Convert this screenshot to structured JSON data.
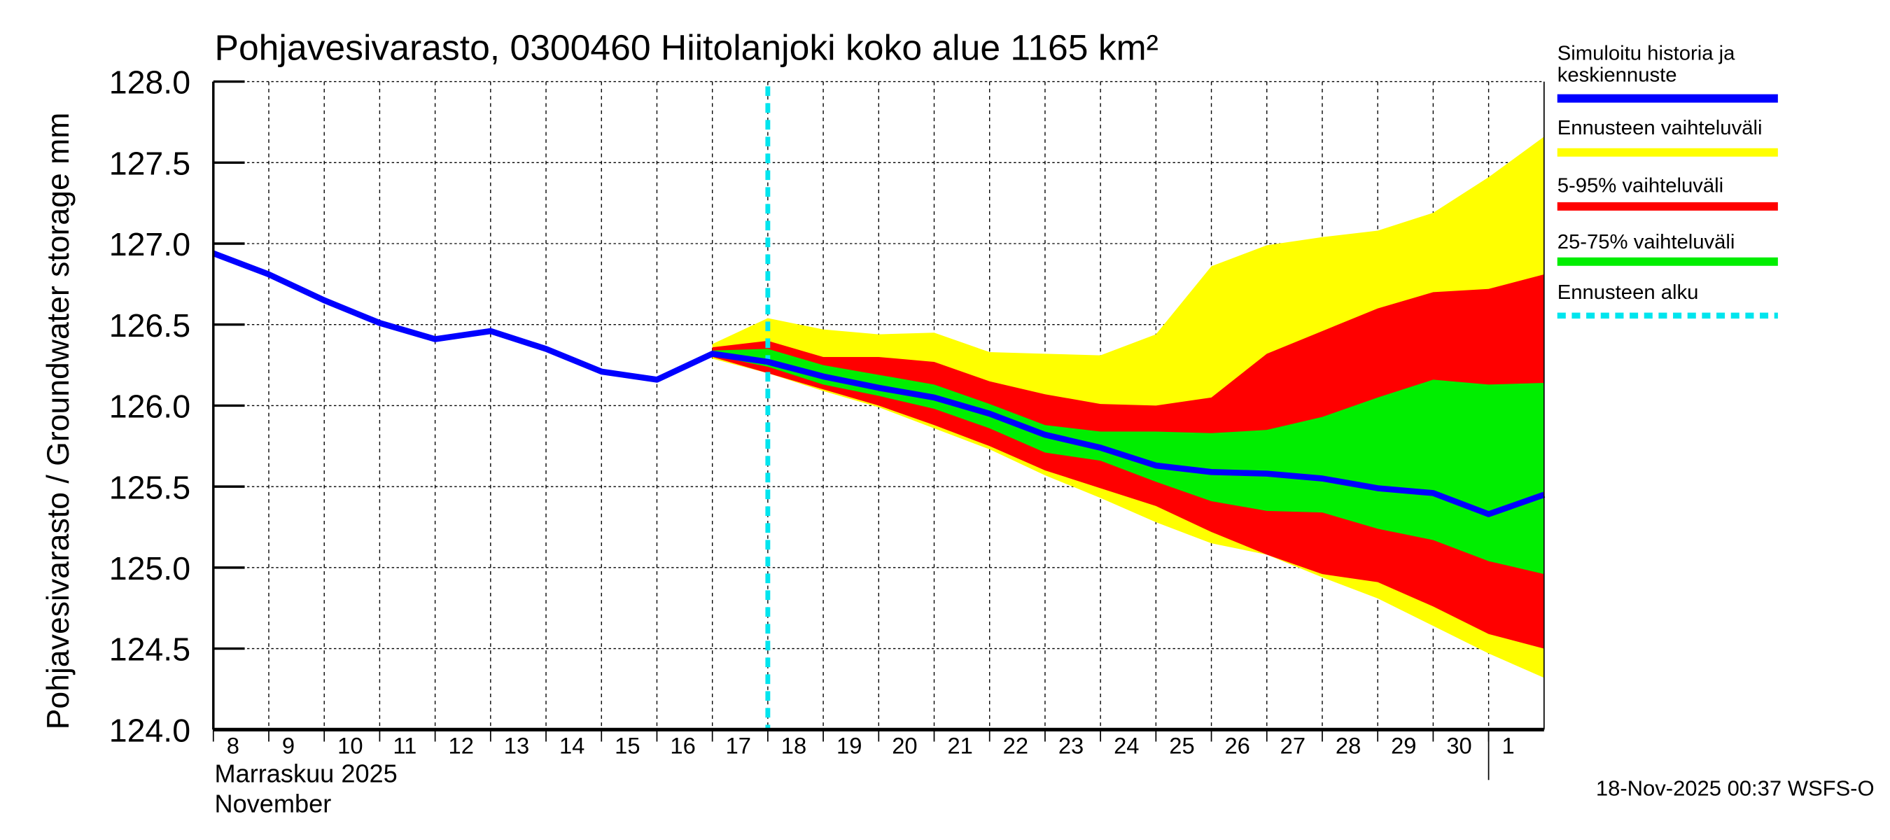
{
  "chart_data": {
    "type": "area",
    "title": "Pohjavesivarasto, 0300460 Hiitolanjoki koko alue 1165 km²",
    "ylabel": "Pohjavesivarasto / Groundwater storage   mm",
    "xlabel_lines": [
      "Marraskuu 2025",
      "November"
    ],
    "footer": "18-Nov-2025 00:37 WSFS-O",
    "ylim": [
      124.0,
      128.0
    ],
    "yticks": [
      "124.0",
      "124.5",
      "125.0",
      "125.5",
      "126.0",
      "126.5",
      "127.0",
      "127.5",
      "128.0"
    ],
    "xlim": [
      "2025-11-08",
      "2025-12-02"
    ],
    "xtick_labels": [
      "8",
      "9",
      "10",
      "11",
      "12",
      "13",
      "14",
      "15",
      "16",
      "17",
      "18",
      "19",
      "20",
      "21",
      "22",
      "23",
      "24",
      "25",
      "26",
      "27",
      "28",
      "29",
      "30",
      "1"
    ],
    "grid": true,
    "legend_placement": "right",
    "forecast_start": "2025-11-18",
    "colors": {
      "median": "#0000ff",
      "range": "#ffff00",
      "p5_95": "#ff0000",
      "p25_75": "#00ee00",
      "forecast_start": "#00e5ee"
    },
    "legend": [
      {
        "label": "Simuloitu historia ja keskiennuste",
        "key": "median"
      },
      {
        "label": "Ennusteen vaihteluväli",
        "key": "range"
      },
      {
        "label": "5-95% vaihteluväli",
        "key": "p5_95"
      },
      {
        "label": "25-75% vaihteluväli",
        "key": "p25_75"
      },
      {
        "label": "Ennusteen alku",
        "key": "forecast_start"
      }
    ],
    "median": {
      "x": [
        "2025-11-08",
        "2025-11-09",
        "2025-11-10",
        "2025-11-11",
        "2025-11-12",
        "2025-11-13",
        "2025-11-14",
        "2025-11-15",
        "2025-11-16",
        "2025-11-17",
        "2025-11-18",
        "2025-11-19",
        "2025-11-20",
        "2025-11-21",
        "2025-11-22",
        "2025-11-23",
        "2025-11-24",
        "2025-11-25",
        "2025-11-26",
        "2025-11-27",
        "2025-11-28",
        "2025-11-29",
        "2025-11-30",
        "2025-12-01",
        "2025-12-02"
      ],
      "y": [
        126.94,
        126.81,
        126.65,
        126.51,
        126.41,
        126.46,
        126.35,
        126.21,
        126.16,
        126.32,
        126.27,
        126.18,
        126.11,
        126.05,
        125.95,
        125.82,
        125.74,
        125.63,
        125.59,
        125.58,
        125.55,
        125.49,
        125.46,
        125.33,
        125.45
      ]
    },
    "bands_x": [
      "2025-11-17",
      "2025-11-18",
      "2025-11-19",
      "2025-11-20",
      "2025-11-21",
      "2025-11-22",
      "2025-11-23",
      "2025-11-24",
      "2025-11-25",
      "2025-11-26",
      "2025-11-27",
      "2025-11-28",
      "2025-11-29",
      "2025-11-30",
      "2025-12-01",
      "2025-12-02"
    ],
    "range": {
      "upper": [
        126.38,
        126.54,
        126.47,
        126.44,
        126.45,
        126.33,
        126.32,
        126.31,
        126.44,
        126.86,
        126.99,
        127.04,
        127.08,
        127.19,
        127.41,
        127.66
      ],
      "lower": [
        126.29,
        126.2,
        126.09,
        125.99,
        125.86,
        125.73,
        125.57,
        125.43,
        125.28,
        125.15,
        125.08,
        124.94,
        124.81,
        124.64,
        124.47,
        124.32
      ]
    },
    "p5_95": {
      "upper": [
        126.36,
        126.4,
        126.3,
        126.3,
        126.27,
        126.15,
        126.07,
        126.01,
        126.0,
        126.05,
        126.32,
        126.46,
        126.6,
        126.7,
        126.72,
        126.81
      ],
      "lower": [
        126.3,
        126.2,
        126.1,
        126.0,
        125.88,
        125.75,
        125.6,
        125.49,
        125.38,
        125.22,
        125.08,
        124.96,
        124.91,
        124.76,
        124.59,
        124.5
      ]
    },
    "p25_75": {
      "upper": [
        126.34,
        126.35,
        126.25,
        126.19,
        126.13,
        126.01,
        125.88,
        125.84,
        125.84,
        125.83,
        125.85,
        125.93,
        126.05,
        126.16,
        126.13,
        126.14
      ],
      "lower": [
        126.31,
        126.24,
        126.13,
        126.06,
        125.98,
        125.86,
        125.71,
        125.66,
        125.53,
        125.41,
        125.35,
        125.34,
        125.24,
        125.17,
        125.04,
        124.96
      ]
    }
  }
}
